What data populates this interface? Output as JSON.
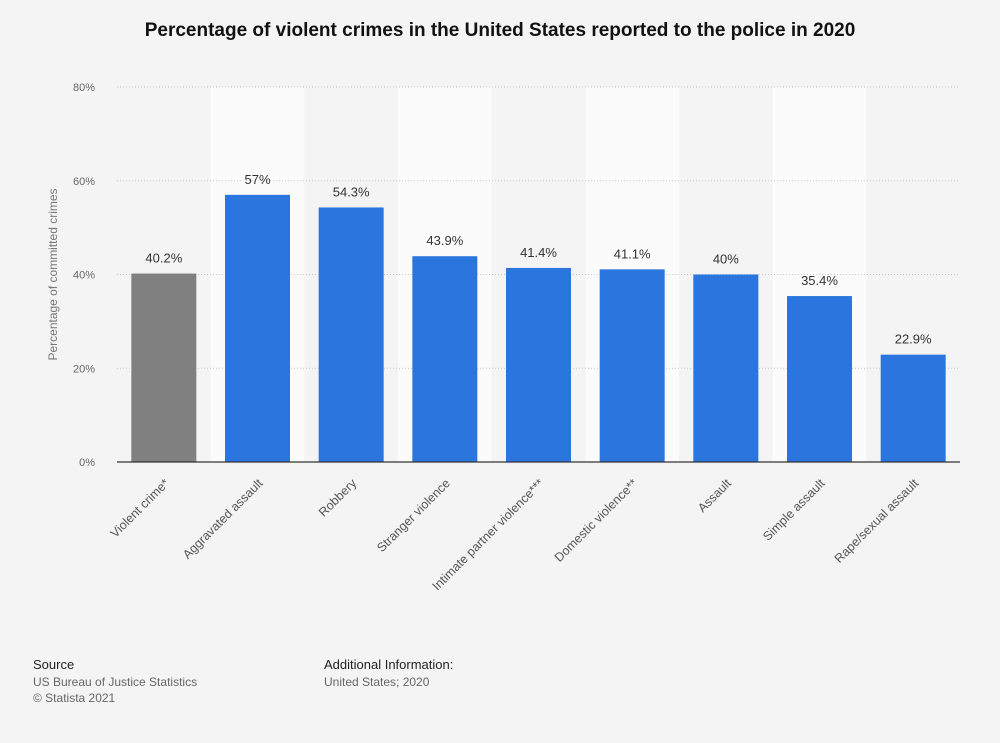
{
  "chart_data": {
    "type": "bar",
    "title": "Percentage of violent crimes in the United States reported to the police in 2020",
    "ylabel": "Percentage of committed crimes",
    "xlabel": "",
    "ylim": [
      0,
      80
    ],
    "yticks": [
      0,
      20,
      40,
      60,
      80
    ],
    "ytick_labels": [
      "0%",
      "20%",
      "40%",
      "60%",
      "80%"
    ],
    "categories": [
      "Violent crime*",
      "Aggravated assault",
      "Robbery",
      "Stranger violence",
      "Intimate partner violence***",
      "Domestic violence**",
      "Assault",
      "Simple assault",
      "Rape/sexual assault"
    ],
    "values": [
      40.2,
      57,
      54.3,
      43.9,
      41.4,
      41.1,
      40,
      35.4,
      22.9
    ],
    "value_labels": [
      "40.2%",
      "57%",
      "54.3%",
      "43.9%",
      "41.4%",
      "41.1%",
      "40%",
      "35.4%",
      "22.9%"
    ],
    "colors": [
      "#808080",
      "#2a75de",
      "#2a75de",
      "#2a75de",
      "#2a75de",
      "#2a75de",
      "#2a75de",
      "#2a75de",
      "#2a75de"
    ],
    "grid": true
  },
  "footer": {
    "source_heading": "Source",
    "source_line1": "US Bureau of Justice Statistics",
    "source_line2": "© Statista 2021",
    "info_heading": "Additional Information:",
    "info_line": "United States; 2020"
  }
}
